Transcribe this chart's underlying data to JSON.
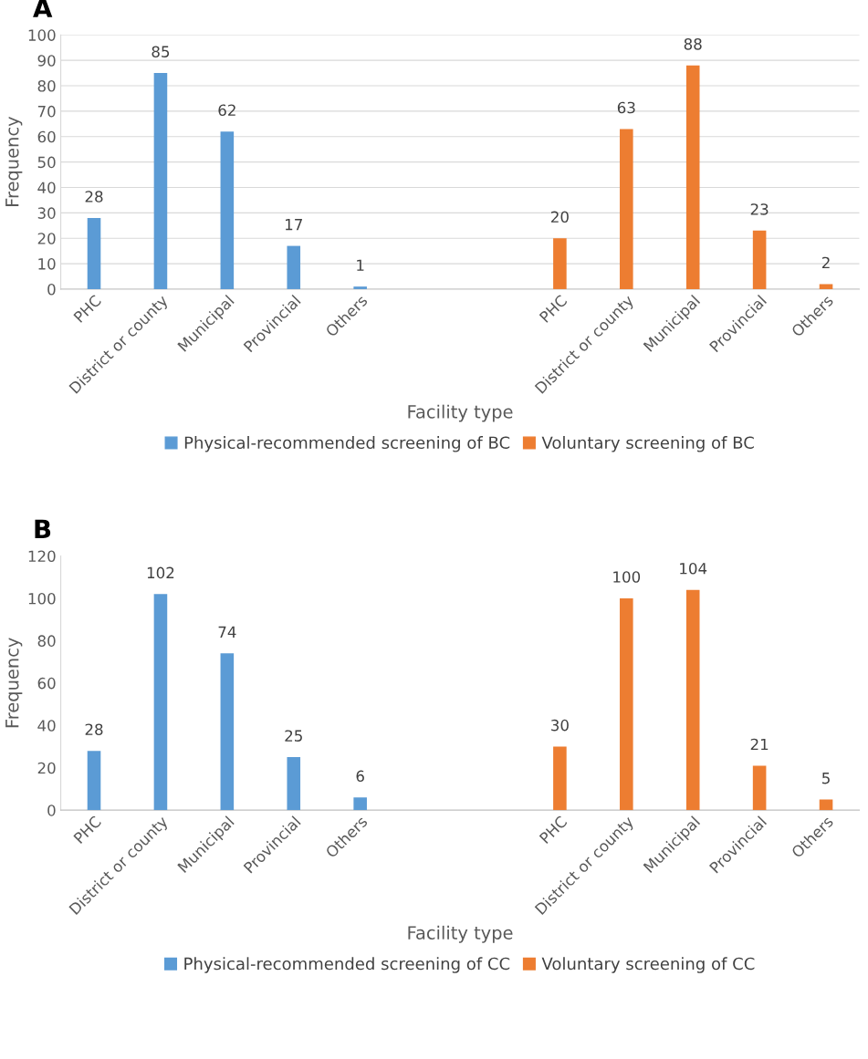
{
  "chart_data": [
    {
      "type": "bar",
      "title": "A",
      "xlabel": "Facility type",
      "ylabel": "Frequency",
      "categories": [
        "PHC",
        "District or county",
        "Municipal",
        "Provincial",
        "Others",
        null,
        null,
        "PHC",
        "District or county",
        "Municipal",
        "Provincial",
        "Others"
      ],
      "series": [
        {
          "name": "Physical-recommended screening of BC",
          "color": "#5b9bd5",
          "values": [
            28,
            85,
            62,
            17,
            1,
            null,
            null,
            null,
            null,
            null,
            null,
            null
          ]
        },
        {
          "name": "Voluntary screening of BC",
          "color": "#ed7d31",
          "values": [
            null,
            null,
            null,
            null,
            null,
            null,
            null,
            20,
            63,
            88,
            23,
            2
          ]
        }
      ],
      "ylim": [
        0,
        100
      ],
      "yticks": [
        0,
        10,
        20,
        30,
        40,
        50,
        60,
        70,
        80,
        90,
        100
      ],
      "grid": "y",
      "data_labels": true,
      "legend": "bottom"
    },
    {
      "type": "bar",
      "title": "B",
      "xlabel": "Facility type",
      "ylabel": "Frequency",
      "categories": [
        "PHC",
        "District or county",
        "Municipal",
        "Provincial",
        "Others",
        null,
        null,
        "PHC",
        "District or county",
        "Municipal",
        "Provincial",
        "Others"
      ],
      "series": [
        {
          "name": "Physical-recommended screening of CC",
          "color": "#5b9bd5",
          "values": [
            28,
            102,
            74,
            25,
            6,
            null,
            null,
            null,
            null,
            null,
            null,
            null
          ]
        },
        {
          "name": "Voluntary screening of CC",
          "color": "#ed7d31",
          "values": [
            null,
            null,
            null,
            null,
            null,
            null,
            null,
            30,
            100,
            104,
            21,
            5
          ]
        }
      ],
      "ylim": [
        0,
        120
      ],
      "yticks": [
        0,
        20,
        40,
        60,
        80,
        100,
        120
      ],
      "grid": false,
      "data_labels": true,
      "legend": "bottom"
    }
  ]
}
